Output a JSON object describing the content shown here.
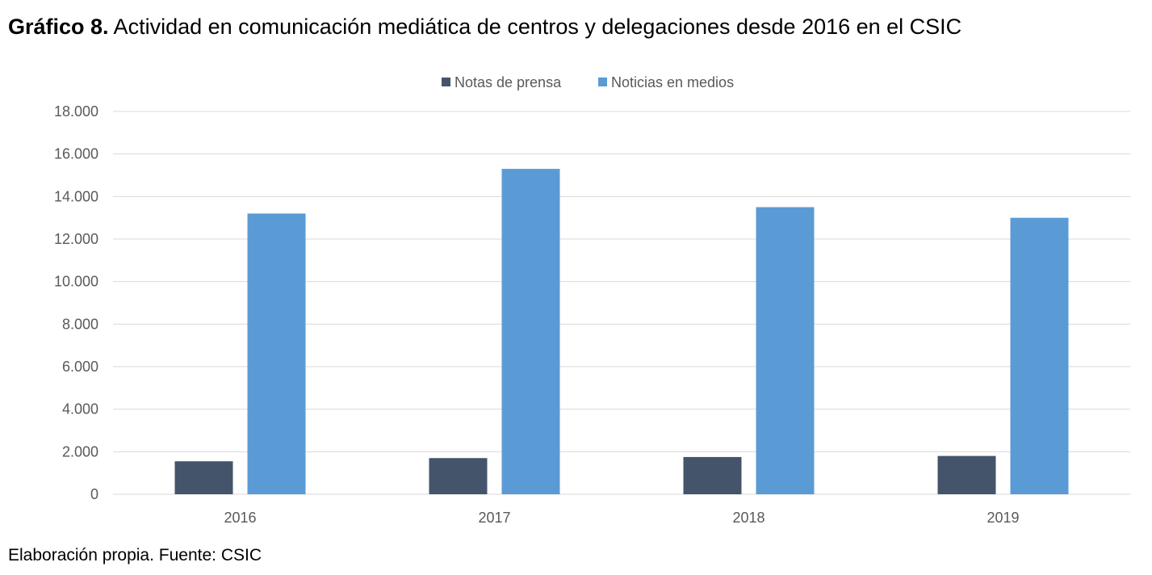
{
  "title_bold": "Gráfico 8.",
  "title_rest": " Actividad en comunicación mediática de centros y delegaciones desde 2016 en el CSIC",
  "footer": "Elaboración propia. Fuente: CSIC",
  "colors": {
    "series_1": "#44546A",
    "series_2": "#5B9BD5",
    "grid": "#D9D9D9",
    "axis_text": "#595959"
  },
  "chart_data": {
    "type": "bar",
    "categories": [
      "2016",
      "2017",
      "2018",
      "2019"
    ],
    "series": [
      {
        "name": "Notas de prensa",
        "values": [
          1550,
          1700,
          1750,
          1800
        ]
      },
      {
        "name": "Noticias en medios",
        "values": [
          13200,
          15300,
          13500,
          13000
        ]
      }
    ],
    "ylim": [
      0,
      18000
    ],
    "yticks": [
      0,
      2000,
      4000,
      6000,
      8000,
      10000,
      12000,
      14000,
      16000,
      18000
    ],
    "ytick_labels": [
      "0",
      "2.000",
      "4.000",
      "6.000",
      "8.000",
      "10.000",
      "12.000",
      "14.000",
      "16.000",
      "18.000"
    ],
    "legend_position": "top-center",
    "grid": true
  }
}
